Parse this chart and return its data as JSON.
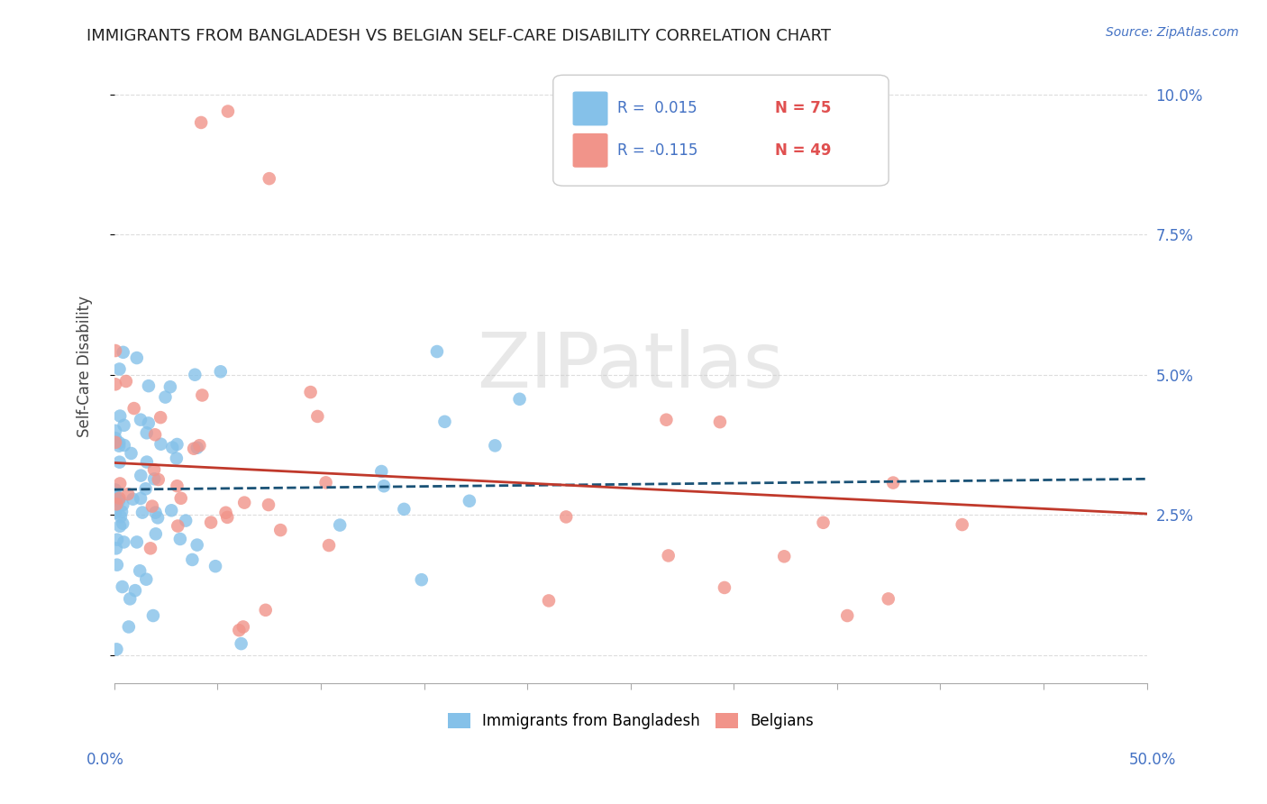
{
  "title": "IMMIGRANTS FROM BANGLADESH VS BELGIAN SELF-CARE DISABILITY CORRELATION CHART",
  "source": "Source: ZipAtlas.com",
  "ylabel": "Self-Care Disability",
  "xlim": [
    0.0,
    0.5
  ],
  "ylim": [
    -0.005,
    0.108
  ],
  "blue_color": "#85C1E9",
  "pink_color": "#F1948A",
  "blue_line_color": "#1A5276",
  "pink_line_color": "#C0392B",
  "background_color": "#ffffff",
  "legend_r1": "R =  0.015",
  "legend_n1": "N = 75",
  "legend_r2": "R = -0.115",
  "legend_n2": "N = 49"
}
